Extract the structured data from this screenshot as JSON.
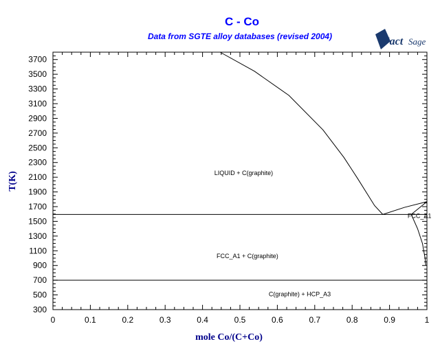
{
  "chart_data": {
    "type": "line",
    "title": "C - Co",
    "subtitle": "Data from SGTE alloy databases (revised 2004)",
    "logo": "FactSage",
    "xlabel": "mole Co/(C+Co)",
    "ylabel": "T(K)",
    "xlim": [
      0,
      1
    ],
    "ylim": [
      300,
      3800
    ],
    "xticks": [
      "0",
      "0.1",
      "0.2",
      "0.3",
      "0.4",
      "0.5",
      "0.6",
      "0.7",
      "0.8",
      "0.9",
      "1"
    ],
    "yticks": [
      "300",
      "500",
      "700",
      "900",
      "1100",
      "1300",
      "1500",
      "1700",
      "1900",
      "2100",
      "2300",
      "2500",
      "2700",
      "2900",
      "3100",
      "3300",
      "3500",
      "3700"
    ],
    "grid": false,
    "lines": [
      {
        "points": [
          [
            0.447,
            3800
          ],
          [
            0.539,
            3540
          ],
          [
            0.631,
            3212
          ],
          [
            0.722,
            2744
          ],
          [
            0.778,
            2369
          ],
          [
            0.814,
            2088
          ],
          [
            0.86,
            1714
          ],
          [
            0.882,
            1594
          ]
        ]
      },
      {
        "points": [
          [
            0,
            1594
          ],
          [
            1,
            1594
          ]
        ]
      },
      {
        "points": [
          [
            0.882,
            1594
          ],
          [
            0.94,
            1690
          ],
          [
            1,
            1768
          ]
        ]
      },
      {
        "points": [
          [
            0.958,
            1594
          ],
          [
            1,
            1768
          ]
        ]
      },
      {
        "points": [
          [
            0.958,
            1594
          ],
          [
            0.975,
            1400
          ],
          [
            0.988,
            1200
          ],
          [
            0.995,
            1000
          ],
          [
            0.997,
            900
          ]
        ]
      },
      {
        "points": [
          [
            0,
            700
          ],
          [
            1,
            700
          ]
        ]
      }
    ],
    "annotations": [
      {
        "text": "LIQUID + C(graphite)",
        "x": 0.51,
        "y": 2130
      },
      {
        "text": "FCC_A1",
        "x": 0.98,
        "y": 1545
      },
      {
        "text": "FCC_A1 + C(graphite)",
        "x": 0.52,
        "y": 1000
      },
      {
        "text": "C(graphite) + HCP_A3",
        "x": 0.66,
        "y": 480
      }
    ],
    "colors": {
      "title": "#0000ff",
      "axis_label": "#00008b",
      "logo": "#1a3a6e",
      "lines": "#000000"
    }
  }
}
